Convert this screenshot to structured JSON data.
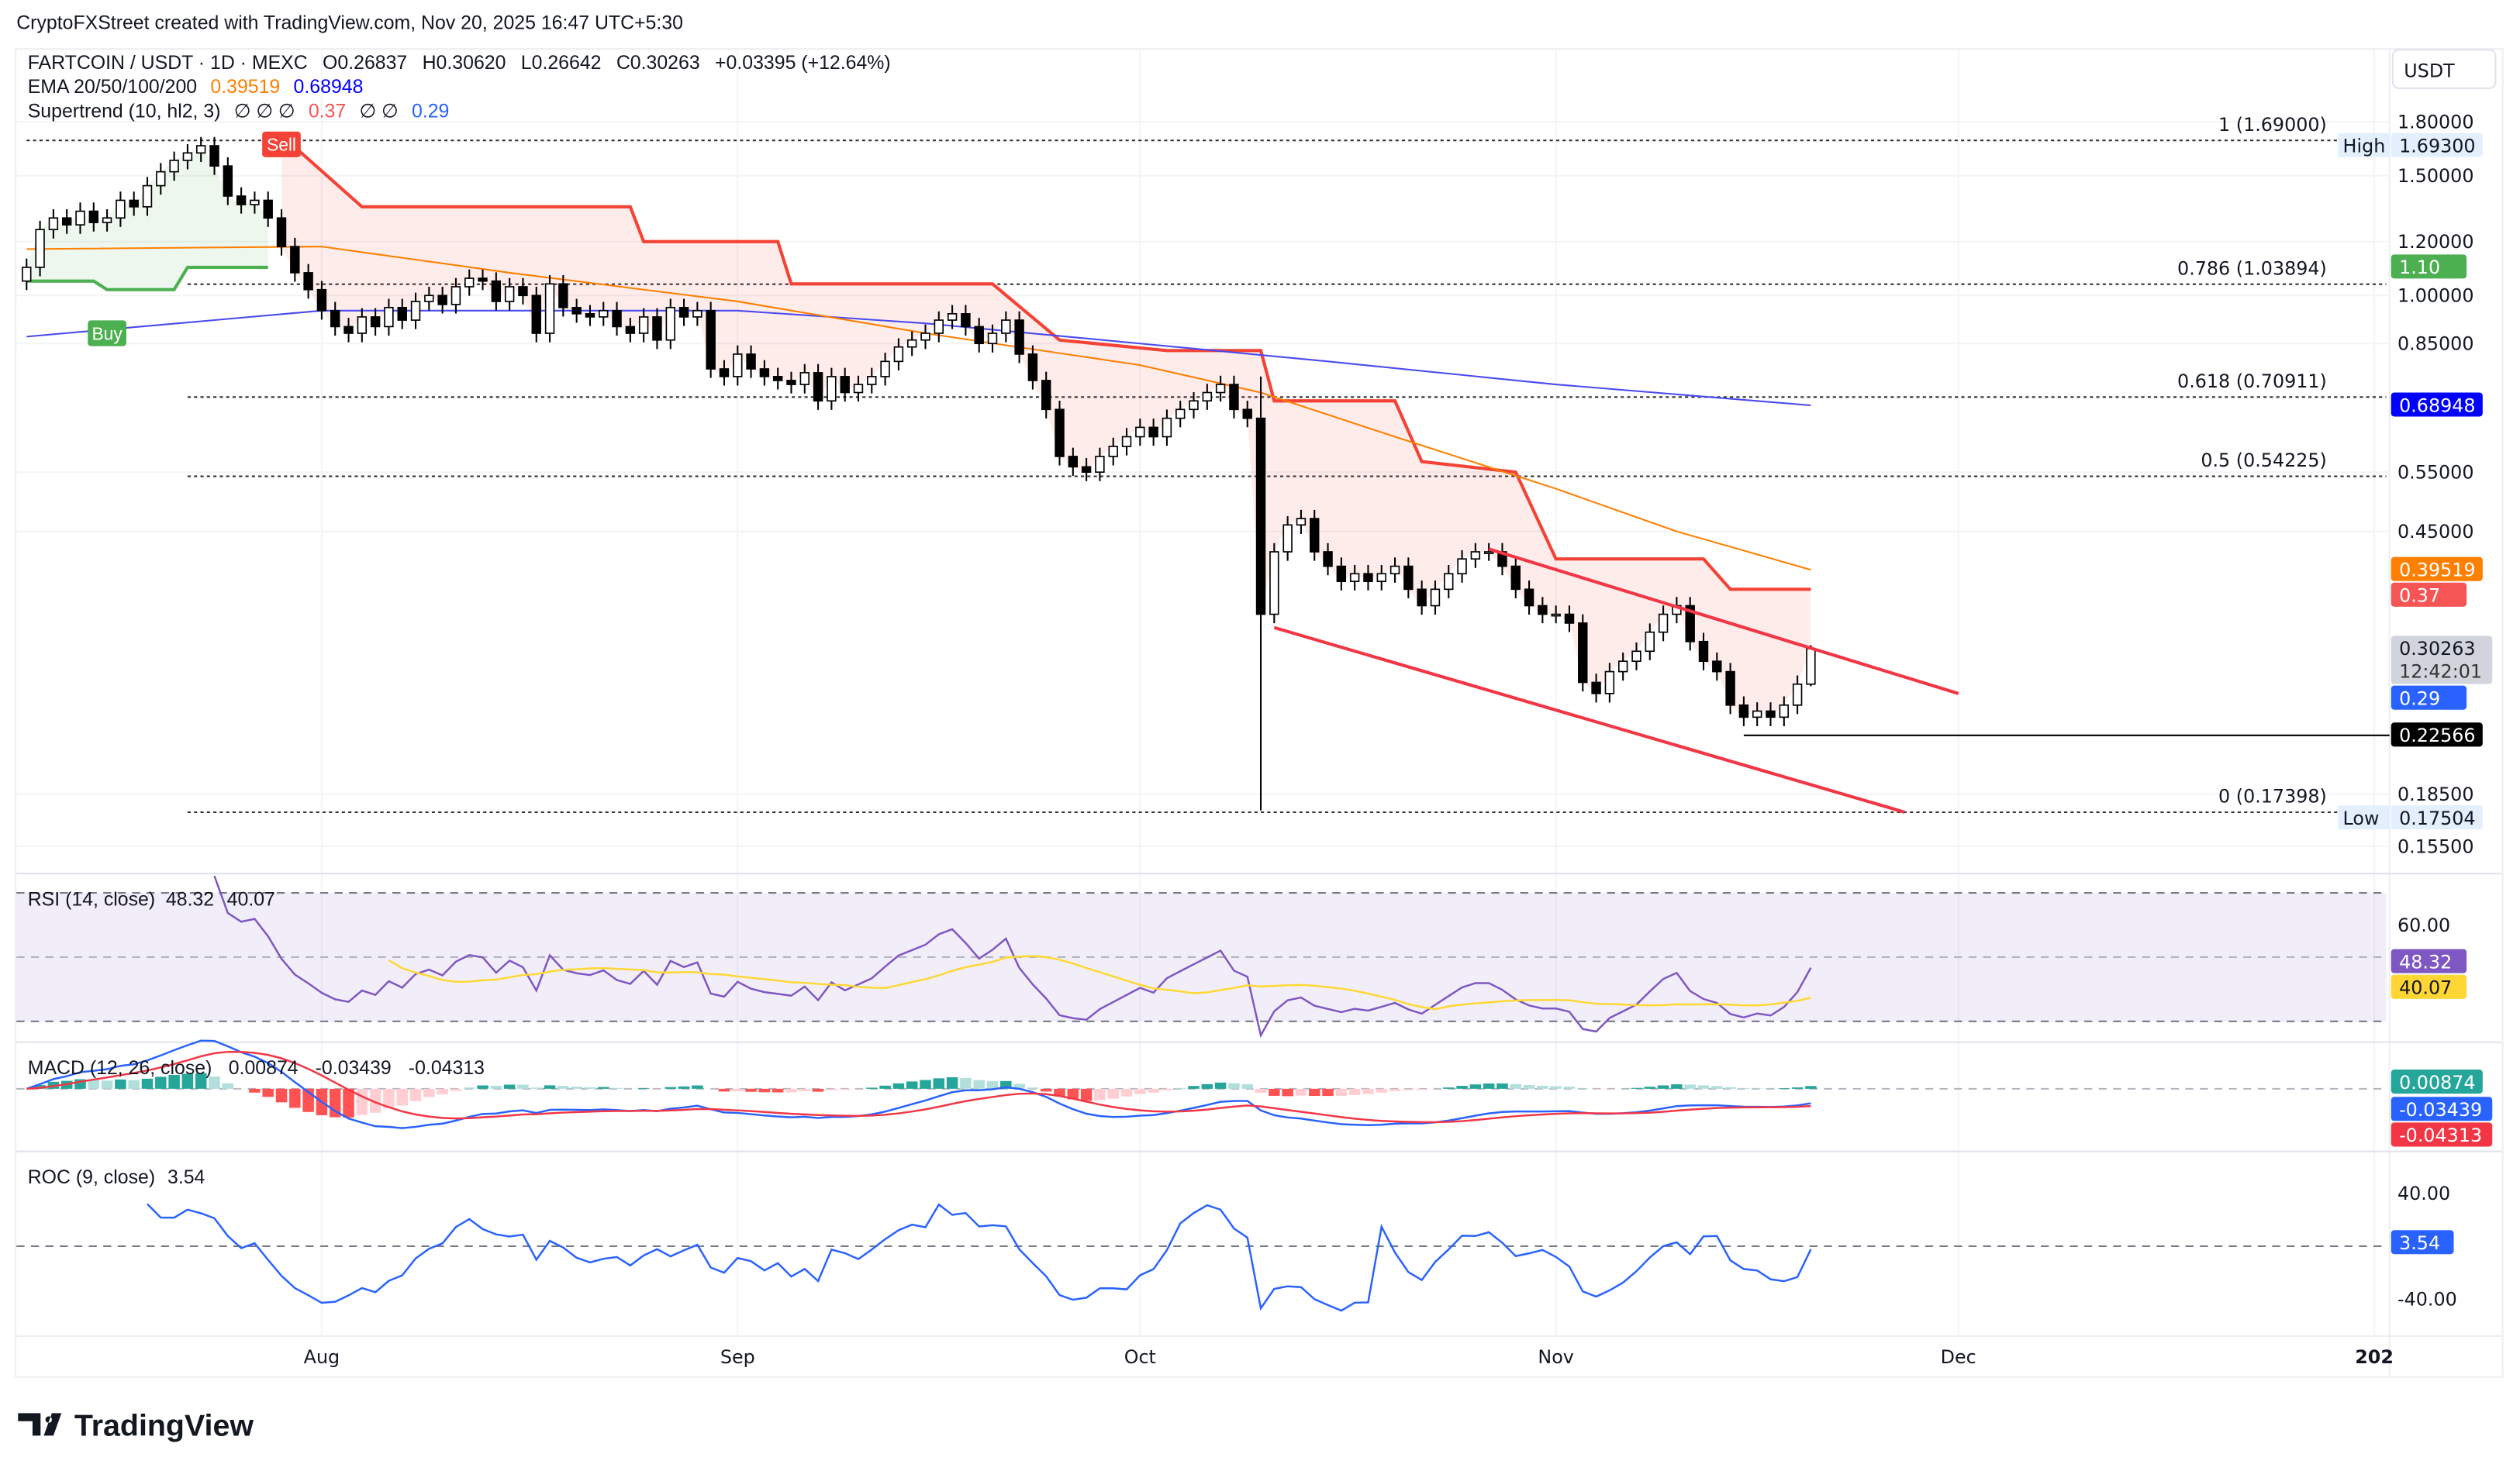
{
  "header": {
    "attribution": "CryptoFXStreet created with TradingView.com, Nov 20, 2025 16:47 UTC+5:30"
  },
  "legend": {
    "symbol": "FARTCOIN / USDT · 1D · MEXC",
    "open": "O0.26837",
    "high": "H0.30620",
    "low": "L0.26642",
    "close": "C0.30263",
    "change": "+0.03395 (+12.64%)",
    "ema_label": "EMA 20/50/100/200",
    "ema50": "0.39519",
    "ema200": "0.68948",
    "st_label": "Supertrend (10, hl2, 3)",
    "st_na": "∅ ∅ ∅",
    "st_upper": "0.37",
    "st_na2": "∅ ∅",
    "st_lower": "0.29"
  },
  "currency_button": "USDT",
  "footer": {
    "logo": "TradingView"
  },
  "colors": {
    "up_body": "#ffffff",
    "down_body": "#000000",
    "ema50": "#ff7f00",
    "ema200": "#4a4af0",
    "st_red": "#f44336",
    "st_green": "#4caf50",
    "channel": "#f23645",
    "rsi": "#7e57c2",
    "rsi_ma": "#fdd835",
    "macd": "#2962ff",
    "signal": "#f23645",
    "roc": "#2962ff"
  },
  "chart_data": {
    "type": "candlestick",
    "scale": "log",
    "start_date": "2025-07-10",
    "close": [
      1.1,
      1.25,
      1.3,
      1.27,
      1.33,
      1.28,
      1.3,
      1.38,
      1.35,
      1.45,
      1.52,
      1.58,
      1.62,
      1.66,
      1.55,
      1.4,
      1.36,
      1.38,
      1.3,
      1.18,
      1.08,
      1.02,
      0.95,
      0.9,
      0.88,
      0.93,
      0.9,
      0.96,
      0.92,
      0.98,
      1.0,
      0.97,
      1.03,
      1.06,
      1.05,
      0.98,
      1.03,
      1.0,
      0.88,
      1.04,
      0.96,
      0.94,
      0.93,
      0.95,
      0.9,
      0.88,
      0.93,
      0.86,
      0.96,
      0.93,
      0.95,
      0.78,
      0.76,
      0.82,
      0.78,
      0.76,
      0.75,
      0.74,
      0.77,
      0.7,
      0.76,
      0.72,
      0.74,
      0.76,
      0.8,
      0.84,
      0.86,
      0.88,
      0.92,
      0.94,
      0.9,
      0.85,
      0.88,
      0.92,
      0.82,
      0.75,
      0.68,
      0.58,
      0.56,
      0.55,
      0.58,
      0.6,
      0.62,
      0.64,
      0.62,
      0.66,
      0.68,
      0.7,
      0.72,
      0.74,
      0.68,
      0.66,
      0.34,
      0.42,
      0.46,
      0.47,
      0.42,
      0.4,
      0.38,
      0.39,
      0.38,
      0.39,
      0.4,
      0.37,
      0.35,
      0.37,
      0.39,
      0.41,
      0.42,
      0.42,
      0.4,
      0.37,
      0.35,
      0.34,
      0.34,
      0.33,
      0.27,
      0.26,
      0.28,
      0.29,
      0.3,
      0.32,
      0.34,
      0.35,
      0.31,
      0.29,
      0.28,
      0.25,
      0.24,
      0.245,
      0.24,
      0.25,
      0.26837,
      0.30263
    ],
    "last_candle": {
      "open": 0.26837,
      "high": 0.3062,
      "low": 0.26642,
      "close": 0.30263
    },
    "crash_candle": {
      "date": "2025-10-10",
      "low": 0.17504
    },
    "ema50": [
      [
        "2025-07-10",
        1.17
      ],
      [
        "2025-08-01",
        1.18
      ],
      [
        "2025-08-15",
        1.08
      ],
      [
        "2025-09-01",
        0.98
      ],
      [
        "2025-09-15",
        0.88
      ],
      [
        "2025-10-01",
        0.79
      ],
      [
        "2025-10-10",
        0.72
      ],
      [
        "2025-10-20",
        0.62
      ],
      [
        "2025-11-01",
        0.52
      ],
      [
        "2025-11-10",
        0.45
      ],
      [
        "2025-11-20",
        0.39519
      ]
    ],
    "ema200": [
      [
        "2025-07-10",
        0.87
      ],
      [
        "2025-08-01",
        0.95
      ],
      [
        "2025-09-01",
        0.95
      ],
      [
        "2025-09-15",
        0.91
      ],
      [
        "2025-10-01",
        0.85
      ],
      [
        "2025-10-15",
        0.8
      ],
      [
        "2025-11-01",
        0.74
      ],
      [
        "2025-11-20",
        0.68948
      ]
    ],
    "supertrend": [
      {
        "trend": "up",
        "points": [
          [
            "2025-07-10",
            1.05
          ],
          [
            "2025-07-15",
            1.05
          ],
          [
            "2025-07-16",
            1.02
          ],
          [
            "2025-07-21",
            1.02
          ],
          [
            "2025-07-22",
            1.1
          ],
          [
            "2025-07-28",
            1.1
          ]
        ]
      },
      {
        "trend": "down",
        "points": [
          [
            "2025-07-29",
            1.72
          ],
          [
            "2025-08-04",
            1.35
          ],
          [
            "2025-08-24",
            1.35
          ],
          [
            "2025-08-25",
            1.2
          ],
          [
            "2025-09-04",
            1.2
          ],
          [
            "2025-09-05",
            1.04
          ],
          [
            "2025-09-20",
            1.04
          ],
          [
            "2025-09-25",
            0.86
          ],
          [
            "2025-10-03",
            0.83
          ],
          [
            "2025-10-10",
            0.83
          ],
          [
            "2025-10-11",
            0.7
          ],
          [
            "2025-10-20",
            0.7
          ],
          [
            "2025-10-22",
            0.57
          ],
          [
            "2025-10-29",
            0.55
          ],
          [
            "2025-11-01",
            0.41
          ],
          [
            "2025-11-12",
            0.41
          ],
          [
            "2025-11-14",
            0.37
          ],
          [
            "2025-11-20",
            0.37
          ]
        ]
      }
    ],
    "signals": [
      {
        "date": "2025-07-16",
        "label": "Buy",
        "value": 0.88
      },
      {
        "date": "2025-07-29",
        "label": "Sell",
        "value": 1.78
      }
    ],
    "channel": {
      "upper": [
        [
          "2025-10-27",
          0.424
        ],
        [
          "2025-12-01",
          0.26
        ]
      ],
      "lower": [
        [
          "2025-10-11",
          0.325
        ],
        [
          "2025-11-27",
          0.174
        ]
      ]
    },
    "support_line": {
      "from": "2025-11-15",
      "value": 0.22566
    },
    "fib": [
      {
        "label": "1 (1.69000)",
        "value": 1.69,
        "from": "2025-07-10"
      },
      {
        "label": "0.786 (1.03894)",
        "value": 1.03894,
        "from": "2025-07-22"
      },
      {
        "label": "0.618 (0.70911)",
        "value": 0.70911,
        "from": "2025-07-22"
      },
      {
        "label": "0.5 (0.54225)",
        "value": 0.54225,
        "from": "2025-07-22"
      },
      {
        "label": "0 (0.17398)",
        "value": 0.17398,
        "from": "2025-07-22"
      }
    ],
    "price_ticks": [
      "1.80000",
      "1.50000",
      "1.20000",
      "1.00000",
      "0.85000",
      "0.55000",
      "0.45000",
      "0.18500",
      "0.15500"
    ],
    "price_tags": [
      {
        "label": "1.69300",
        "value": 1.693,
        "bg": "#e3effd",
        "fg": "#131722",
        "side": "High"
      },
      {
        "label": "1.10",
        "value": 1.1,
        "bg": "#4caf50",
        "fg": "#ffffff"
      },
      {
        "label": "0.68948",
        "value": 0.68948,
        "bg": "#0000ff",
        "fg": "#ffffff"
      },
      {
        "label": "0.39519",
        "value": 0.39519,
        "bg": "#ff7f00",
        "fg": "#ffffff"
      },
      {
        "label": "0.37",
        "value": 0.37,
        "bg": "#f55555",
        "fg": "#ffffff"
      },
      {
        "label": "0.30263",
        "value": 0.30263,
        "bg": "#d1d4dc",
        "fg": "#131722",
        "sub": "12:42:01"
      },
      {
        "label": "0.29",
        "value": 0.288,
        "bg": "#2962ff",
        "fg": "#ffffff"
      },
      {
        "label": "0.22566",
        "value": 0.22566,
        "bg": "#000000",
        "fg": "#ffffff"
      },
      {
        "label": "0.17504",
        "value": 0.17504,
        "bg": "#e3effd",
        "fg": "#131722",
        "side": "Low"
      }
    ],
    "time_ticks": [
      {
        "label": "Aug",
        "date": "2025-08-01"
      },
      {
        "label": "Sep",
        "date": "2025-09-01"
      },
      {
        "label": "Oct",
        "date": "2025-10-01"
      },
      {
        "label": "Nov",
        "date": "2025-11-01"
      },
      {
        "label": "Dec",
        "date": "2025-12-01"
      },
      {
        "label": "202",
        "date": "2026-01-01"
      }
    ],
    "rsi": {
      "label": "RSI (14, close)",
      "value": "48.32",
      "ma": "40.07",
      "levels": [
        70,
        50,
        30
      ],
      "tick": "60.00"
    },
    "macd": {
      "label": "MACD (12, 26, close)",
      "hist": "0.00874",
      "macd": "-0.03439",
      "signal": "-0.04313"
    },
    "roc": {
      "label": "ROC (9, close)",
      "value": "3.54",
      "ticks": [
        "40.00",
        "-40.00"
      ]
    }
  }
}
